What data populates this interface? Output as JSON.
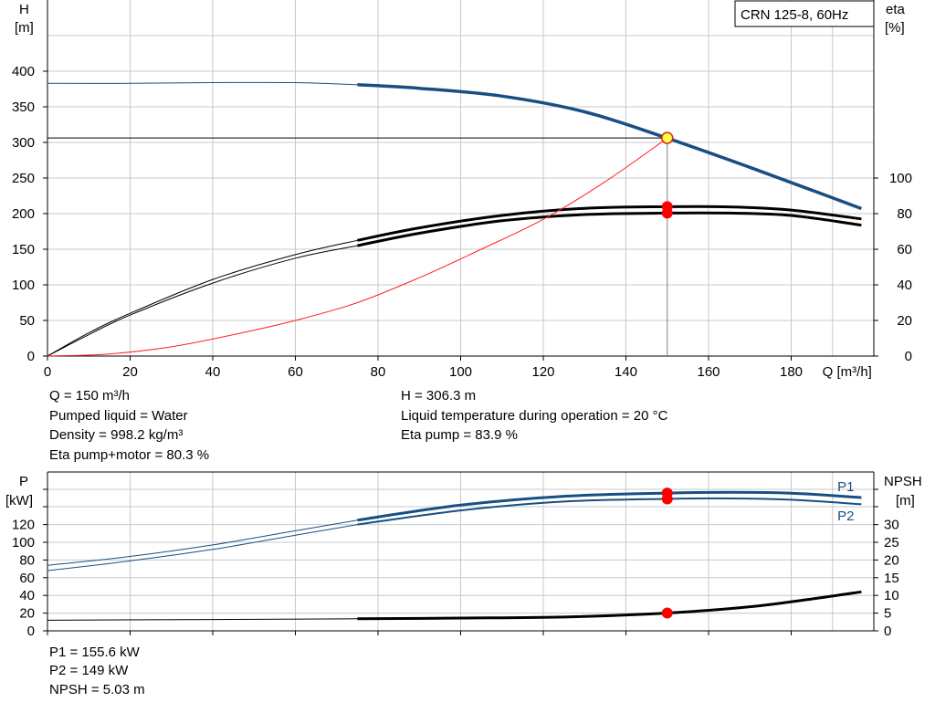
{
  "model_label": "CRN 125-8, 60Hz",
  "colors": {
    "head": "#174f82",
    "efficiency": "#000000",
    "system": "#ff2020",
    "point_fill": "#ffff40",
    "point_stroke": "#e02020",
    "marker": "#ff0000",
    "grid": "#c8c8c8"
  },
  "chart_data": [
    {
      "type": "line",
      "title": "",
      "ylabel_left": [
        "H",
        "[m]"
      ],
      "ylabel_right": [
        "eta",
        "[%]"
      ],
      "xlabel": "Q [m³/h]",
      "xlim": [
        0,
        200
      ],
      "ylim_left": [
        0,
        400
      ],
      "ylim_right": [
        0,
        166.7
      ],
      "x_ticks": [
        0,
        20,
        40,
        60,
        80,
        100,
        120,
        140,
        160,
        180
      ],
      "y_ticks_left": [
        0,
        50,
        100,
        150,
        200,
        250,
        300,
        350,
        400
      ],
      "y_ticks_right": [
        0,
        20,
        40,
        60,
        80,
        100
      ],
      "grid": true,
      "series": [
        {
          "role": "head",
          "axis": "left",
          "x": [
            0,
            20,
            40,
            60,
            75,
            90,
            110,
            130,
            150,
            170,
            185,
            197
          ],
          "y": [
            383,
            383,
            384,
            384,
            381,
            376,
            365,
            343,
            306,
            265,
            233,
            207
          ]
        },
        {
          "role": "eta_pump",
          "axis": "right",
          "x": [
            0,
            10,
            20,
            40,
            60,
            75,
            90,
            110,
            130,
            150,
            165,
            180,
            197
          ],
          "y": [
            0,
            13,
            24,
            43,
            57,
            65,
            72,
            79,
            83,
            83.9,
            83.8,
            82,
            77
          ]
        },
        {
          "role": "eta_pump_motor",
          "axis": "right",
          "x": [
            0,
            10,
            20,
            40,
            60,
            75,
            90,
            110,
            130,
            150,
            165,
            180,
            197
          ],
          "y": [
            0,
            12,
            23,
            41,
            55,
            62,
            69,
            76,
            79.5,
            80.3,
            80.3,
            79,
            73.5
          ]
        },
        {
          "role": "system_curve",
          "axis": "left",
          "x": [
            0,
            15,
            30,
            45,
            60,
            75,
            90,
            105,
            120,
            135,
            150
          ],
          "y": [
            0,
            3,
            13,
            30,
            50,
            75,
            110,
            150,
            192,
            245,
            306
          ]
        }
      ],
      "operating_point": {
        "q": 150,
        "h": 306.3,
        "eta_pump": 83.9,
        "eta_pump_motor": 80.3
      },
      "solid_from_q": 75
    },
    {
      "type": "line",
      "title": "",
      "ylabel_left": [
        "P",
        "[kW]"
      ],
      "ylabel_right": [
        "NPSH",
        "[m]"
      ],
      "xlim": [
        0,
        200
      ],
      "ylim_left": [
        0,
        160
      ],
      "ylim_right": [
        0,
        40
      ],
      "y_ticks_left": [
        0,
        20,
        40,
        60,
        80,
        100,
        120
      ],
      "y_ticks_right": [
        0,
        5,
        10,
        15,
        20,
        25,
        30
      ],
      "grid": true,
      "series": [
        {
          "name": "P1",
          "axis": "left",
          "x": [
            0,
            20,
            40,
            60,
            75,
            100,
            125,
            150,
            165,
            180,
            197
          ],
          "y": [
            74,
            84,
            97,
            113,
            125,
            142,
            152,
            155.6,
            156.5,
            155.5,
            150.5
          ]
        },
        {
          "name": "P2",
          "axis": "left",
          "x": [
            0,
            20,
            40,
            60,
            75,
            100,
            125,
            150,
            165,
            180,
            197
          ],
          "y": [
            68,
            79,
            92,
            108,
            120,
            136,
            146,
            149,
            149.5,
            148,
            143
          ]
        },
        {
          "role": "npsh",
          "axis": "right",
          "x": [
            0,
            40,
            75,
            100,
            125,
            150,
            170,
            185,
            197
          ],
          "y": [
            3,
            3.2,
            3.4,
            3.6,
            3.9,
            5.03,
            6.8,
            9,
            11
          ]
        }
      ],
      "solid_from_q": 75
    }
  ],
  "readouts_top": {
    "q": "Q = 150 m³/h",
    "liquid": "Pumped liquid = Water",
    "density": "Density = 998.2 kg/m³",
    "eta_pm": "Eta pump+motor = 80.3 %",
    "h": "H = 306.3 m",
    "temp": "Liquid temperature during operation = 20 °C",
    "eta_p": "Eta pump = 83.9 %"
  },
  "readouts_bottom": {
    "p1": "P1 = 155.6 kW",
    "p2": "P2 = 149 kW",
    "npsh": "NPSH = 5.03 m"
  }
}
